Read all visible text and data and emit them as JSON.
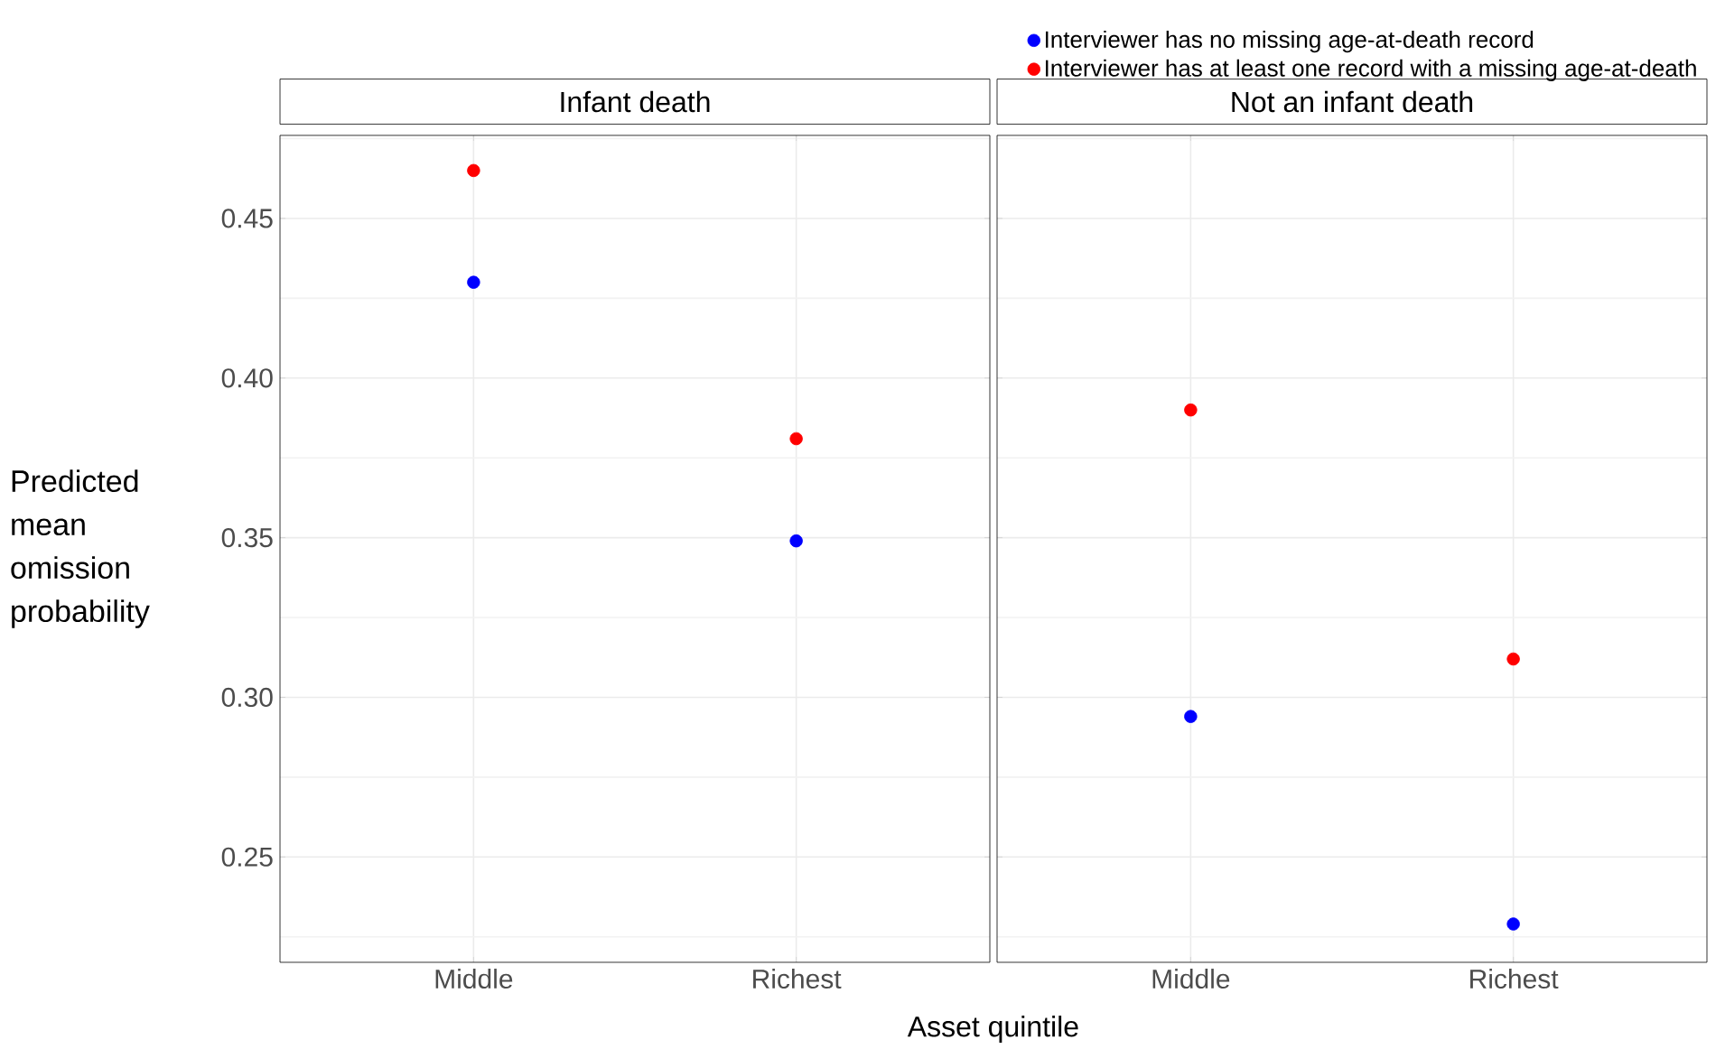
{
  "chart_data": [
    {
      "type": "scatter",
      "title": "Infant death",
      "categories": [
        "Middle",
        "Richest"
      ],
      "ylabel": "Predicted mean omission probability",
      "xlabel": "Asset quintile",
      "series": [
        {
          "color": "#0000ff",
          "values": [
            0.43,
            0.349
          ]
        },
        {
          "color": "#ff0000",
          "values": [
            0.465,
            0.381
          ]
        }
      ],
      "ylim": [
        0.217,
        0.476
      ],
      "yticks": [
        0.25,
        {
          "value": 0.3,
          "label": "0.30"
        },
        0.35,
        {
          "value": 0.4,
          "label": "0.40"
        },
        0.45
      ],
      "grid": true,
      "marker": "circle",
      "legend": false
    },
    {
      "type": "scatter",
      "title": "Not an infant death",
      "categories": [
        "Middle",
        "Richest"
      ],
      "series": [
        {
          "name": "Interviewer has no missing age-at-death record",
          "color": "#0000ff",
          "values": [
            0.294,
            0.229
          ]
        },
        {
          "name": "Interviewer has at least one record with a missing age-at-death",
          "color": "#ff0000",
          "values": [
            0.39,
            0.312
          ]
        }
      ],
      "ylim": [
        0.217,
        0.476
      ],
      "yticks": [
        0.25,
        0.3,
        0.35,
        0.4,
        0.45
      ],
      "grid": true,
      "marker": "circle",
      "legend": "top right",
      "tick_labels": "x"
    }
  ]
}
